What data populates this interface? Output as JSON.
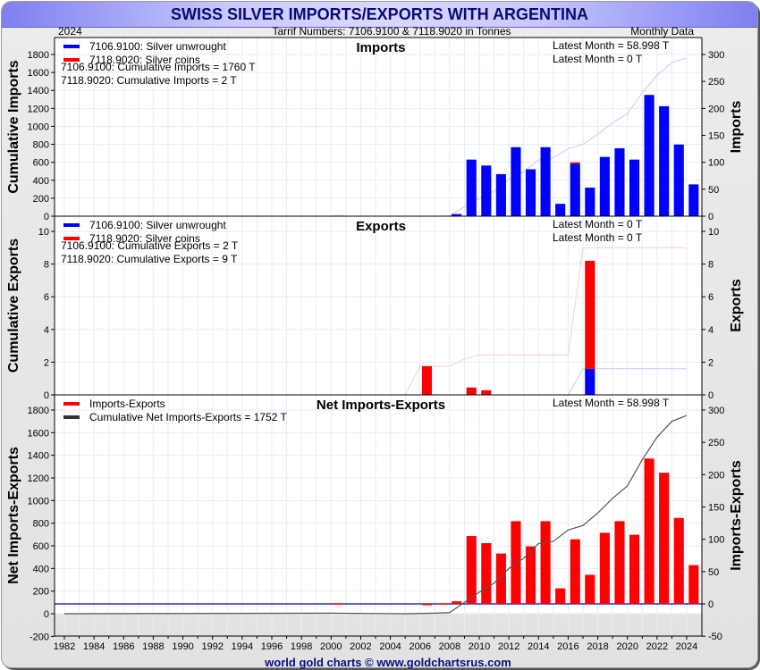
{
  "header": {
    "title": "SWISS SILVER IMPORTS/EXPORTS WITH ARGENTINA",
    "year": "2024",
    "subtitle": "Tarrif Numbers: 7106.9100 & 7118.9020 in Tonnes",
    "frequency": "Monthly Data"
  },
  "footer": "world gold charts © www.goldchartsrus.com",
  "colors": {
    "unwrought": "#0000ff",
    "coins": "#ff0000",
    "net": "#ff0000",
    "cumulative_net": "#333333",
    "zero_line": "#0000c0"
  },
  "chart_data": [
    {
      "type": "bar",
      "title": "Imports",
      "ylabel_left": "Cumulative Imports",
      "ylabel_right": "Imports",
      "ylim_left": [
        0,
        1800
      ],
      "ylim_right": [
        0,
        300
      ],
      "yticks_left": [
        0,
        200,
        400,
        600,
        800,
        1000,
        1200,
        1400,
        1600,
        1800
      ],
      "yticks_right": [
        0,
        50,
        100,
        150,
        200,
        250,
        300
      ],
      "legend": [
        "7106.9100: Silver unwrought",
        "7118.9020: Silver coins"
      ],
      "notes": [
        "7106.9100: Cumulative Imports = 1760 T",
        "7118.9020: Cumulative Imports = 2 T"
      ],
      "latest": [
        "Latest Month = 58.998 T",
        "Latest Month = 0 T"
      ],
      "x": [
        2000,
        2008,
        2009,
        2010,
        2011,
        2012,
        2013,
        2014,
        2015,
        2016,
        2017,
        2018,
        2019,
        2020,
        2021,
        2022,
        2023,
        2024
      ],
      "series": [
        {
          "name": "7106.9100: Silver unwrought",
          "values": [
            1,
            4,
            105,
            94,
            78,
            128,
            87,
            128,
            23,
            97,
            53,
            110,
            126,
            105,
            225,
            204,
            133,
            59
          ]
        },
        {
          "name": "7118.9020: Silver coins",
          "values": [
            0,
            0,
            0,
            0,
            0,
            0,
            0,
            0,
            0,
            3,
            0,
            0,
            0,
            0,
            0,
            0,
            0,
            0
          ]
        }
      ],
      "cumulative": {
        "name": "Cumulative 7106.9100",
        "x": [
          2007,
          2008,
          2009,
          2010,
          2011,
          2012,
          2013,
          2014,
          2015,
          2016,
          2017,
          2018,
          2019,
          2020,
          2021,
          2022,
          2023,
          2024
        ],
        "values": [
          0,
          5,
          105,
          200,
          280,
          410,
          495,
          625,
          650,
          750,
          800,
          910,
          1040,
          1140,
          1370,
          1570,
          1710,
          1760
        ]
      }
    },
    {
      "type": "bar",
      "title": "Exports",
      "ylabel_left": "Cumulative Exports",
      "ylabel_right": "Exports",
      "ylim_left": [
        0,
        10
      ],
      "ylim_right": [
        0,
        10
      ],
      "yticks_left": [
        0,
        2,
        4,
        6,
        8,
        10
      ],
      "yticks_right": [
        0,
        2,
        4,
        6,
        8,
        10
      ],
      "legend": [
        "7106.9100: Silver unwrought",
        "7118.9020: Silver coins"
      ],
      "notes": [
        "7106.9100: Cumulative Exports = 2 T",
        "7118.9020: Cumulative Exports = 9 T"
      ],
      "latest": [
        "Latest Month = 0 T",
        "Latest Month = 0 T"
      ],
      "x": [
        2006,
        2009,
        2010,
        2017
      ],
      "series": [
        {
          "name": "7106.9100: Silver unwrought",
          "values": [
            0,
            0,
            0,
            1.6
          ]
        },
        {
          "name": "7118.9020: Silver coins",
          "values": [
            1.75,
            0.45,
            0.28,
            6.6
          ]
        }
      ],
      "cumulative_coins": {
        "x": [
          2005,
          2006,
          2008,
          2009,
          2010,
          2016,
          2017,
          2024
        ],
        "values": [
          0,
          1.75,
          1.75,
          2.2,
          2.45,
          2.45,
          9,
          9
        ]
      },
      "cumulative_unwrought": {
        "x": [
          2016,
          2017,
          2024
        ],
        "values": [
          0,
          1.6,
          1.6
        ]
      }
    },
    {
      "type": "bar",
      "title": "Net Imports-Exports",
      "ylabel_left": "Net Imports-Exports",
      "ylabel_right": "Imports-Exports",
      "ylim_left": [
        -200,
        1800
      ],
      "ylim_right": [
        -50,
        300
      ],
      "yticks_left": [
        -200,
        0,
        200,
        400,
        600,
        800,
        1000,
        1200,
        1400,
        1600,
        1800
      ],
      "yticks_right": [
        -50,
        0,
        50,
        100,
        150,
        200,
        250,
        300
      ],
      "legend": [
        "Imports-Exports",
        "Cumulative Net Imports-Exports = 1752 T"
      ],
      "latest": [
        "Latest Month = 58.998 T"
      ],
      "x": [
        2000,
        2006,
        2007,
        2008,
        2009,
        2010,
        2011,
        2012,
        2013,
        2014,
        2015,
        2016,
        2017,
        2018,
        2019,
        2020,
        2021,
        2022,
        2023,
        2024
      ],
      "values": [
        1,
        -1.7,
        1,
        4,
        105,
        94,
        78,
        128,
        89,
        128,
        24,
        100,
        45,
        110,
        128,
        107,
        225,
        203,
        133,
        60
      ],
      "cumulative": {
        "x": [
          1982,
          2000,
          2005,
          2007,
          2008,
          2009,
          2010,
          2011,
          2012,
          2013,
          2014,
          2015,
          2016,
          2017,
          2018,
          2019,
          2020,
          2021,
          2022,
          2023,
          2024
        ],
        "values": [
          0,
          5,
          0,
          5,
          10,
          100,
          190,
          270,
          400,
          490,
          620,
          640,
          740,
          780,
          890,
          1020,
          1130,
          1360,
          1560,
          1700,
          1752
        ]
      }
    }
  ],
  "xaxis": {
    "ticks": [
      1982,
      1984,
      1986,
      1988,
      1990,
      1992,
      1994,
      1996,
      1998,
      2000,
      2002,
      2004,
      2006,
      2008,
      2010,
      2012,
      2014,
      2016,
      2018,
      2020,
      2022,
      2024
    ],
    "range": [
      1981.4,
      2024.9
    ]
  }
}
